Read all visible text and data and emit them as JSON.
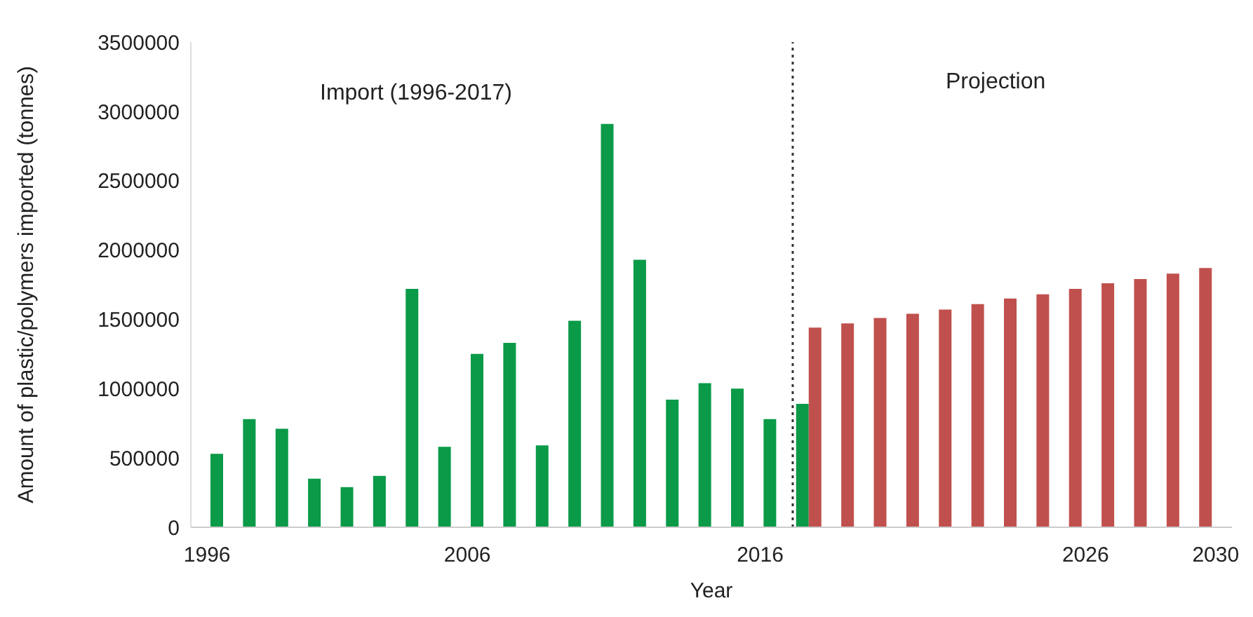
{
  "chart_data": {
    "type": "bar",
    "xlabel": "Year",
    "ylabel": "Amount of plastic/polymers imported (tonnes)",
    "categories": [
      "1996",
      null,
      null,
      null,
      null,
      null,
      null,
      null,
      "2006",
      null,
      null,
      null,
      null,
      null,
      null,
      null,
      null,
      "2016",
      null,
      null,
      null,
      null,
      null,
      null,
      null,
      null,
      null,
      "2026",
      null,
      null,
      null,
      "2030"
    ],
    "series": [
      {
        "color": "#0a9a48",
        "values": [
          530000,
          780000,
          710000,
          350000,
          290000,
          370000,
          1720000,
          580000,
          1250000,
          1330000,
          590000,
          1490000,
          2910000,
          1930000,
          920000,
          1040000,
          1000000,
          780000,
          890000,
          null,
          null,
          null,
          null,
          null,
          null,
          null,
          null,
          null,
          null,
          null,
          null,
          null
        ]
      },
      {
        "color": "#c0504d",
        "values": [
          null,
          null,
          null,
          null,
          null,
          null,
          null,
          null,
          null,
          null,
          null,
          null,
          null,
          null,
          null,
          null,
          null,
          null,
          null,
          1440000,
          1470000,
          1510000,
          1540000,
          1570000,
          1610000,
          1650000,
          1680000,
          1720000,
          1760000,
          1790000,
          1830000,
          1870000
        ]
      }
    ],
    "ylim": [
      0,
      3500000
    ],
    "yticks": [
      0,
      500000,
      1000000,
      1500000,
      2000000,
      2500000,
      3000000,
      3500000
    ],
    "annotations": [
      "Import (1996-2017)",
      "Projection"
    ],
    "legend": false
  }
}
